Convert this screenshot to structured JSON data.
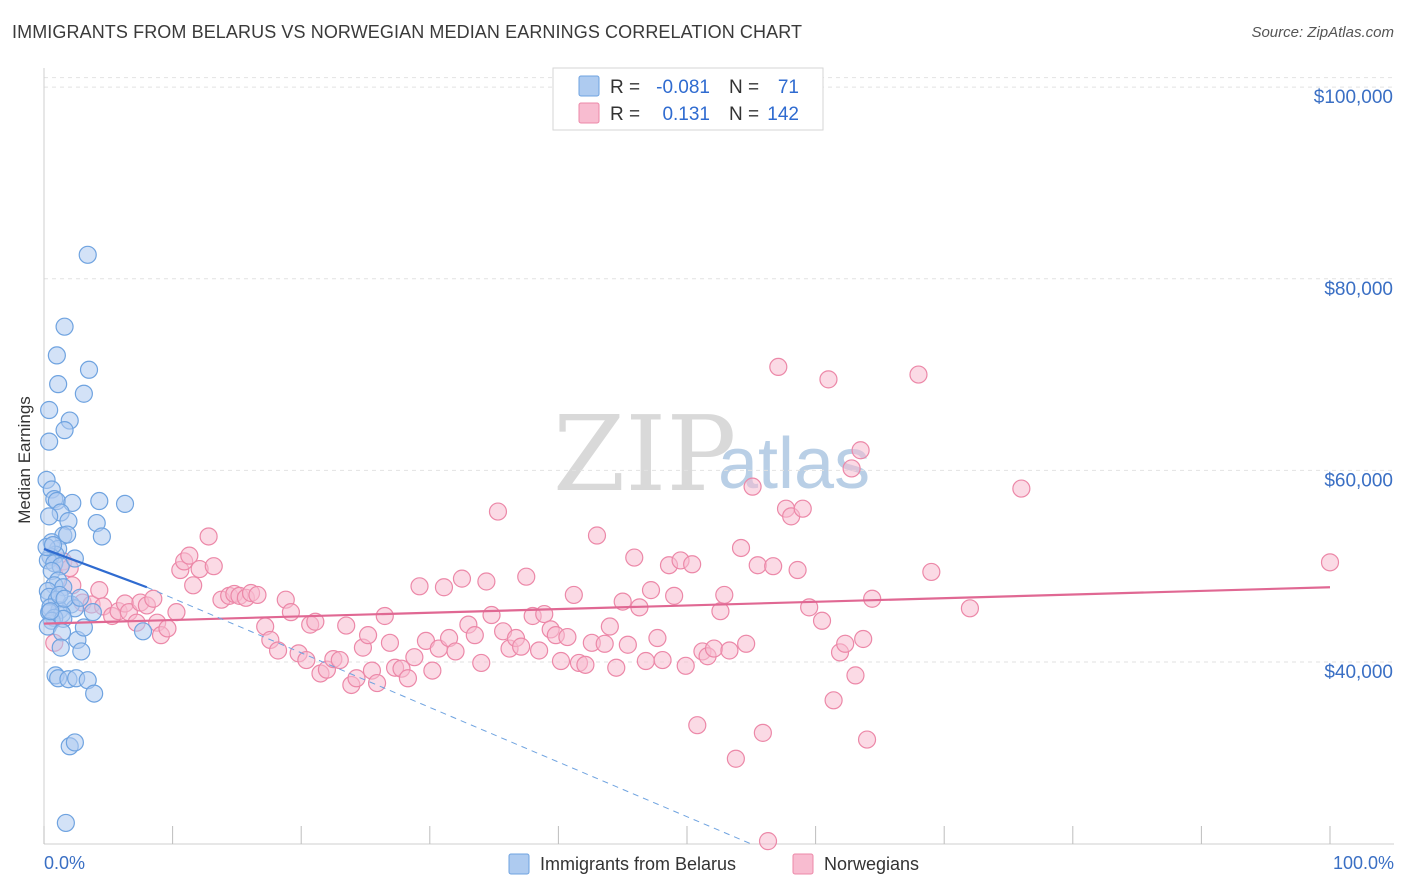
{
  "header": {
    "title": "IMMIGRANTS FROM BELARUS VS NORWEGIAN MEDIAN EARNINGS CORRELATION CHART",
    "source": "Source: ZipAtlas.com"
  },
  "watermark": {
    "zip": "ZIP",
    "atlas": "atlas"
  },
  "legend_box": {
    "rows": [
      {
        "r_label": "R =",
        "r_value": "-0.081",
        "n_label": "N =",
        "n_value": "71",
        "color": "#aecbf0"
      },
      {
        "r_label": "R =",
        "r_value": "0.131",
        "n_label": "N =",
        "n_value": "142",
        "color": "#f8bcd0"
      }
    ]
  },
  "bottom_legend": [
    {
      "label": "Immigrants from Belarus",
      "color": "#aecbf0"
    },
    {
      "label": "Norwegians",
      "color": "#f8bcd0"
    }
  ],
  "chart_data": {
    "type": "scatter",
    "title": "IMMIGRANTS FROM BELARUS VS NORWEGIAN MEDIAN EARNINGS CORRELATION CHART",
    "xlabel": "",
    "ylabel": "Median Earnings",
    "xlim": [
      0,
      100
    ],
    "ylim": [
      21000,
      102000
    ],
    "x_tick_labels": [
      "0.0%",
      "100.0%"
    ],
    "y_ticks": [
      {
        "value": 40000,
        "label": "$40,000"
      },
      {
        "value": 60000,
        "label": "$60,000"
      },
      {
        "value": 80000,
        "label": "$80,000"
      },
      {
        "value": 100000,
        "label": "$100,000"
      }
    ],
    "grid": true,
    "series": [
      {
        "name": "Immigrants from Belarus",
        "color": "#6fa3e0",
        "fill": "#aecbf0",
        "trend": {
          "x0": 0,
          "y0": 51800,
          "x1": 8,
          "y1": 47800,
          "color": "#2f6bd0"
        },
        "trend_extension": {
          "x0": 8,
          "y0": 47800,
          "x1": 55,
          "y1": 21000
        },
        "points": [
          [
            3.4,
            82500
          ],
          [
            1.6,
            75000
          ],
          [
            1.0,
            72000
          ],
          [
            3.5,
            70500
          ],
          [
            1.1,
            69000
          ],
          [
            3.1,
            68000
          ],
          [
            0.4,
            66300
          ],
          [
            2.0,
            65200
          ],
          [
            1.6,
            64200
          ],
          [
            0.4,
            63000
          ],
          [
            0.2,
            59000
          ],
          [
            0.6,
            58000
          ],
          [
            0.8,
            57000
          ],
          [
            1.0,
            56800
          ],
          [
            2.2,
            56600
          ],
          [
            4.3,
            56800
          ],
          [
            6.3,
            56500
          ],
          [
            1.3,
            55600
          ],
          [
            0.4,
            55200
          ],
          [
            1.9,
            54700
          ],
          [
            4.1,
            54500
          ],
          [
            1.5,
            53200
          ],
          [
            1.8,
            53300
          ],
          [
            4.5,
            53100
          ],
          [
            0.6,
            52500
          ],
          [
            1.1,
            51800
          ],
          [
            0.9,
            51200
          ],
          [
            0.5,
            51000
          ],
          [
            0.3,
            50600
          ],
          [
            0.8,
            50300
          ],
          [
            1.3,
            50000
          ],
          [
            2.4,
            50800
          ],
          [
            0.6,
            49500
          ],
          [
            1.1,
            48500
          ],
          [
            0.8,
            48000
          ],
          [
            1.5,
            47800
          ],
          [
            0.3,
            47400
          ],
          [
            0.4,
            46800
          ],
          [
            1.0,
            46500
          ],
          [
            2.1,
            46000
          ],
          [
            0.5,
            45700
          ],
          [
            1.2,
            45400
          ],
          [
            0.4,
            45200
          ],
          [
            2.4,
            45600
          ],
          [
            1.4,
            45000
          ],
          [
            3.8,
            45200
          ],
          [
            0.8,
            44600
          ],
          [
            0.6,
            44300
          ],
          [
            1.5,
            44500
          ],
          [
            0.3,
            43700
          ],
          [
            1.4,
            43100
          ],
          [
            2.6,
            42300
          ],
          [
            3.1,
            43600
          ],
          [
            7.7,
            43200
          ],
          [
            1.3,
            41500
          ],
          [
            2.9,
            41100
          ],
          [
            0.9,
            38600
          ],
          [
            1.1,
            38300
          ],
          [
            1.9,
            38200
          ],
          [
            2.5,
            38300
          ],
          [
            3.4,
            38100
          ],
          [
            3.9,
            36700
          ],
          [
            2.0,
            31200
          ],
          [
            2.4,
            31600
          ],
          [
            1.7,
            23200
          ],
          [
            0.2,
            52000
          ],
          [
            0.7,
            52200
          ],
          [
            1.2,
            47000
          ],
          [
            0.5,
            45300
          ],
          [
            1.6,
            46600
          ],
          [
            2.8,
            46700
          ]
        ]
      },
      {
        "name": "Norwegians",
        "color": "#ec88a8",
        "fill": "#f8bcd0",
        "trend": {
          "x0": 0,
          "y0": 44000,
          "x1": 100,
          "y1": 47800,
          "color": "#e06893"
        },
        "points": [
          [
            0.8,
            42000
          ],
          [
            1.5,
            50500
          ],
          [
            2.0,
            49800
          ],
          [
            2.2,
            48000
          ],
          [
            3.0,
            46200
          ],
          [
            3.7,
            46000
          ],
          [
            4.3,
            47500
          ],
          [
            4.6,
            45800
          ],
          [
            5.3,
            44800
          ],
          [
            5.8,
            45300
          ],
          [
            6.3,
            46100
          ],
          [
            6.6,
            45200
          ],
          [
            7.2,
            44100
          ],
          [
            7.5,
            46200
          ],
          [
            8.0,
            45900
          ],
          [
            8.5,
            46600
          ],
          [
            8.8,
            44100
          ],
          [
            9.1,
            42800
          ],
          [
            9.6,
            43500
          ],
          [
            10.3,
            45200
          ],
          [
            10.6,
            49600
          ],
          [
            10.9,
            50500
          ],
          [
            11.3,
            51100
          ],
          [
            11.6,
            48000
          ],
          [
            12.1,
            49700
          ],
          [
            12.8,
            53100
          ],
          [
            13.2,
            50000
          ],
          [
            13.8,
            46500
          ],
          [
            14.4,
            46900
          ],
          [
            14.8,
            47100
          ],
          [
            15.2,
            46900
          ],
          [
            15.7,
            46700
          ],
          [
            16.1,
            47200
          ],
          [
            16.6,
            47000
          ],
          [
            17.2,
            43700
          ],
          [
            17.6,
            42300
          ],
          [
            18.2,
            41200
          ],
          [
            18.8,
            46500
          ],
          [
            19.2,
            45200
          ],
          [
            19.8,
            40900
          ],
          [
            20.4,
            40200
          ],
          [
            20.7,
            43900
          ],
          [
            21.1,
            44200
          ],
          [
            21.5,
            38800
          ],
          [
            22.0,
            39200
          ],
          [
            22.5,
            40300
          ],
          [
            23.0,
            40200
          ],
          [
            23.5,
            43800
          ],
          [
            23.9,
            37600
          ],
          [
            24.3,
            38300
          ],
          [
            24.8,
            41500
          ],
          [
            25.2,
            42800
          ],
          [
            25.5,
            39100
          ],
          [
            25.9,
            37800
          ],
          [
            26.5,
            44800
          ],
          [
            26.9,
            42000
          ],
          [
            27.3,
            39400
          ],
          [
            27.8,
            39300
          ],
          [
            28.3,
            38300
          ],
          [
            28.8,
            40500
          ],
          [
            29.2,
            47900
          ],
          [
            29.7,
            42200
          ],
          [
            30.2,
            39100
          ],
          [
            30.7,
            41400
          ],
          [
            31.1,
            47800
          ],
          [
            31.5,
            42500
          ],
          [
            32.0,
            41100
          ],
          [
            32.5,
            48700
          ],
          [
            33.0,
            43900
          ],
          [
            33.5,
            42800
          ],
          [
            34.0,
            39900
          ],
          [
            34.4,
            48400
          ],
          [
            34.8,
            44900
          ],
          [
            35.3,
            55700
          ],
          [
            35.7,
            43200
          ],
          [
            36.2,
            41400
          ],
          [
            36.7,
            42500
          ],
          [
            37.1,
            41600
          ],
          [
            37.5,
            48900
          ],
          [
            38.0,
            44800
          ],
          [
            38.5,
            41200
          ],
          [
            38.9,
            45000
          ],
          [
            39.4,
            43400
          ],
          [
            39.8,
            42800
          ],
          [
            40.2,
            40100
          ],
          [
            40.7,
            42600
          ],
          [
            41.2,
            47000
          ],
          [
            41.6,
            39900
          ],
          [
            42.1,
            39700
          ],
          [
            42.6,
            42000
          ],
          [
            43.0,
            53200
          ],
          [
            43.6,
            41900
          ],
          [
            44.0,
            43700
          ],
          [
            44.5,
            39400
          ],
          [
            45.0,
            46300
          ],
          [
            45.4,
            41800
          ],
          [
            45.9,
            50900
          ],
          [
            46.3,
            45700
          ],
          [
            46.8,
            40100
          ],
          [
            47.2,
            47500
          ],
          [
            47.7,
            42500
          ],
          [
            48.1,
            40200
          ],
          [
            48.6,
            50100
          ],
          [
            49.0,
            46900
          ],
          [
            49.5,
            50600
          ],
          [
            49.9,
            39600
          ],
          [
            50.4,
            50200
          ],
          [
            50.8,
            33400
          ],
          [
            51.2,
            41100
          ],
          [
            51.6,
            40600
          ],
          [
            52.1,
            41400
          ],
          [
            52.6,
            45300
          ],
          [
            52.9,
            47000
          ],
          [
            53.3,
            41200
          ],
          [
            53.8,
            29900
          ],
          [
            54.2,
            51900
          ],
          [
            54.6,
            41900
          ],
          [
            55.1,
            58300
          ],
          [
            55.5,
            50100
          ],
          [
            55.9,
            32600
          ],
          [
            56.3,
            21300
          ],
          [
            56.7,
            50000
          ],
          [
            57.1,
            70800
          ],
          [
            57.7,
            56000
          ],
          [
            58.1,
            55200
          ],
          [
            58.6,
            49600
          ],
          [
            59.0,
            56000
          ],
          [
            59.5,
            45700
          ],
          [
            60.5,
            44300
          ],
          [
            61.0,
            69500
          ],
          [
            61.4,
            36000
          ],
          [
            61.9,
            41000
          ],
          [
            62.3,
            41900
          ],
          [
            62.8,
            60200
          ],
          [
            63.1,
            38600
          ],
          [
            63.5,
            62100
          ],
          [
            63.7,
            42400
          ],
          [
            64.0,
            31900
          ],
          [
            64.4,
            46600
          ],
          [
            68.0,
            70000
          ],
          [
            69.0,
            49400
          ],
          [
            72.0,
            45600
          ],
          [
            76.0,
            58100
          ],
          [
            100.0,
            50400
          ]
        ]
      }
    ]
  }
}
